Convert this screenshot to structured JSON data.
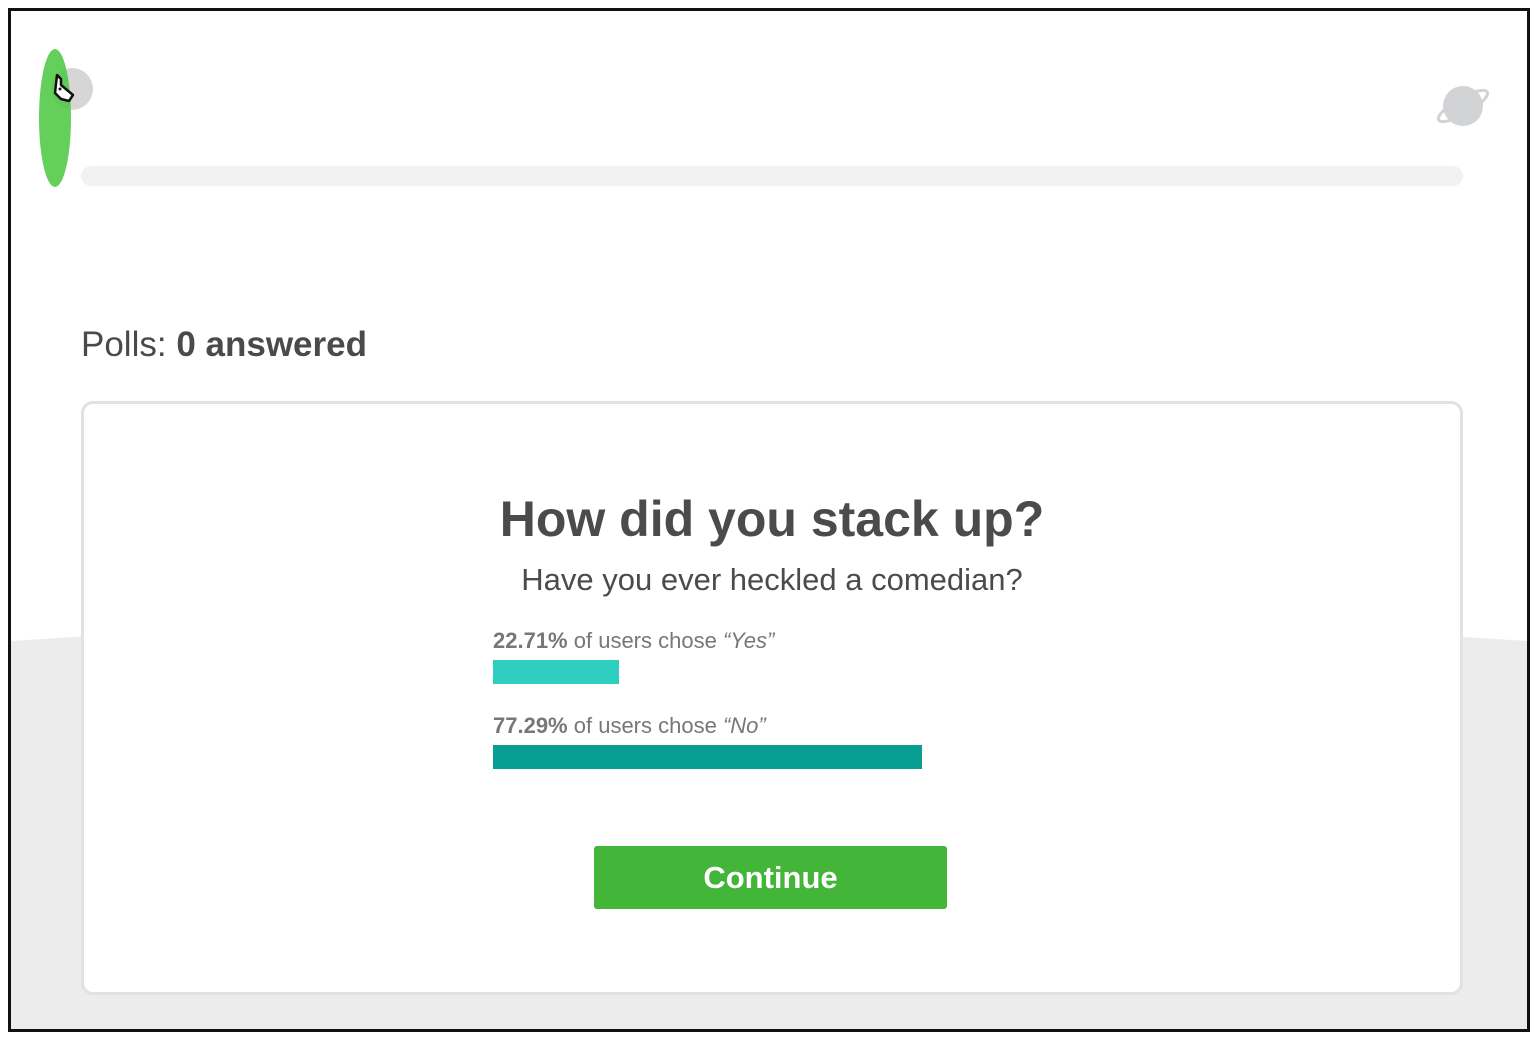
{
  "header": {
    "avatar_icon": "donkey-avatar-icon",
    "right_icon": "planet-icon",
    "progress": 0
  },
  "polls": {
    "label": "Polls:",
    "answered": "0 answered"
  },
  "card": {
    "title": "How did you stack up?",
    "question": "Have you ever heckled a comedian?",
    "results": [
      {
        "percent": "22.71%",
        "text": "of users chose",
        "choice": "“Yes”",
        "value": 22.71,
        "color": "#2ecfc1"
      },
      {
        "percent": "77.29%",
        "text": "of users chose",
        "choice": "“No”",
        "value": 77.29,
        "color": "#089e92"
      }
    ],
    "continue_label": "Continue"
  },
  "colors": {
    "continue": "#43b63a",
    "highlight": "#50c846"
  }
}
